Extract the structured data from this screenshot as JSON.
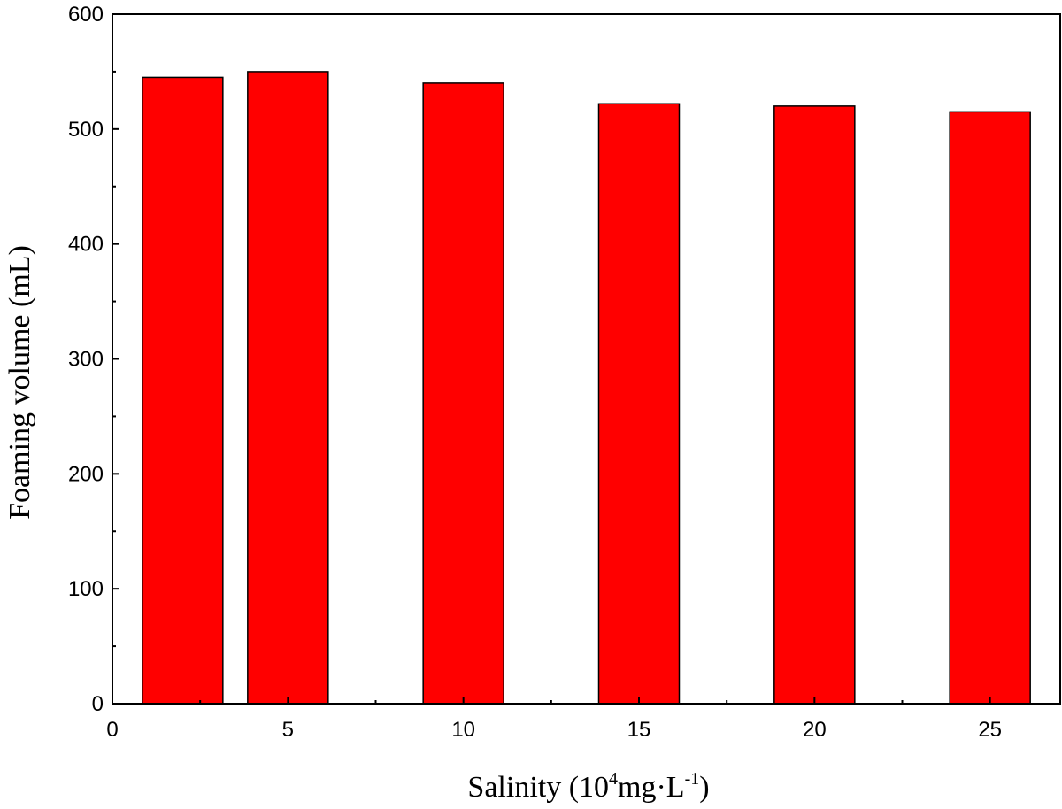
{
  "chart_data": {
    "type": "bar",
    "x": [
      2,
      5,
      10,
      15,
      20,
      25
    ],
    "values": [
      545,
      550,
      540,
      522,
      520,
      515
    ],
    "bar_color": "#ff0000",
    "bar_edge_color": "#000000",
    "xlabel": {
      "main": "Salinity (10",
      "sup1": "4",
      "mid": "mg·L",
      "sup2": "-1",
      "end": ")"
    },
    "ylabel": "Foaming volume (mL)",
    "xlim": [
      0,
      27
    ],
    "ylim": [
      0,
      600
    ],
    "xticks": [
      "0",
      "5",
      "10",
      "15",
      "20",
      "25"
    ],
    "yticks": [
      "0",
      "100",
      "200",
      "300",
      "400",
      "500",
      "600"
    ],
    "grid": false
  }
}
